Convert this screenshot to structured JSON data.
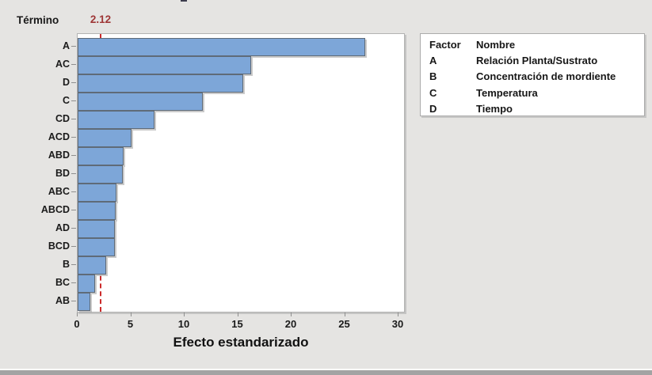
{
  "page": {
    "termino_label": "Término",
    "ref_line_label": "2.12"
  },
  "chart_data": {
    "type": "bar",
    "orientation": "horizontal",
    "categories": [
      "A",
      "AC",
      "D",
      "C",
      "CD",
      "ACD",
      "ABD",
      "BD",
      "ABC",
      "ABCD",
      "AD",
      "BCD",
      "B",
      "BC",
      "AB"
    ],
    "values": [
      26.9,
      16.2,
      15.5,
      11.7,
      7.2,
      5.0,
      4.3,
      4.2,
      3.6,
      3.55,
      3.5,
      3.45,
      2.7,
      1.6,
      1.2
    ],
    "reference_line": 2.12,
    "reference_line_label": "2.12",
    "xlabel": "Efecto estandarizado",
    "ylabel": "Término",
    "x_ticks": [
      0,
      5,
      10,
      15,
      20,
      25,
      30
    ],
    "xlim": [
      0,
      30
    ],
    "grid": false,
    "legend_position": "top-right",
    "colors": {
      "bar_fill": "#7da6d8",
      "bar_border": "#5f6b78",
      "reference_line": "#cc2b2b",
      "reference_text": "#9e3636",
      "plot_background": "#ffffff",
      "page_background": "#e5e4e2"
    }
  },
  "legend": {
    "header": {
      "factor": "Factor",
      "name": "Nombre"
    },
    "rows": [
      {
        "factor": "A",
        "name": "Relación Planta/Sustrato"
      },
      {
        "factor": "B",
        "name": "Concentración de mordiente"
      },
      {
        "factor": "C",
        "name": "Temperatura"
      },
      {
        "factor": "D",
        "name": "Tiempo"
      }
    ]
  }
}
